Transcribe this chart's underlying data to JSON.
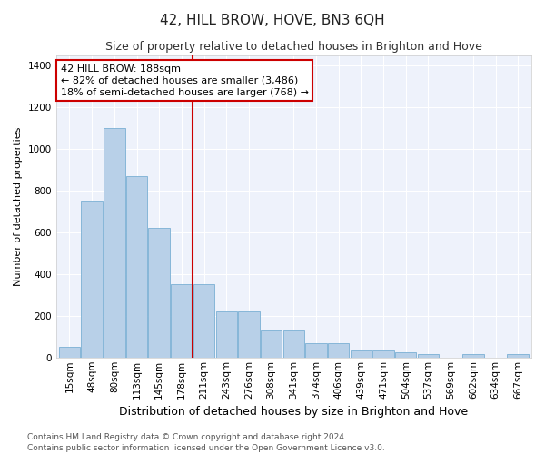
{
  "title": "42, HILL BROW, HOVE, BN3 6QH",
  "subtitle": "Size of property relative to detached houses in Brighton and Hove",
  "xlabel": "Distribution of detached houses by size in Brighton and Hove",
  "ylabel": "Number of detached properties",
  "categories": [
    "15sqm",
    "48sqm",
    "80sqm",
    "113sqm",
    "145sqm",
    "178sqm",
    "211sqm",
    "243sqm",
    "276sqm",
    "308sqm",
    "341sqm",
    "374sqm",
    "406sqm",
    "439sqm",
    "471sqm",
    "504sqm",
    "537sqm",
    "569sqm",
    "602sqm",
    "634sqm",
    "667sqm"
  ],
  "values": [
    50,
    750,
    1100,
    870,
    620,
    350,
    350,
    220,
    220,
    135,
    135,
    70,
    70,
    35,
    35,
    25,
    15,
    0,
    15,
    0,
    15
  ],
  "bar_color": "#b8d0e8",
  "bar_edge_color": "#7aafd4",
  "red_line_color": "#cc0000",
  "red_line_index": 6,
  "annotation_text": "42 HILL BROW: 188sqm\n← 82% of detached houses are smaller (3,486)\n18% of semi-detached houses are larger (768) →",
  "annotation_box_facecolor": "#ffffff",
  "annotation_border_color": "#cc0000",
  "ylim": [
    0,
    1450
  ],
  "yticks": [
    0,
    200,
    400,
    600,
    800,
    1000,
    1200,
    1400
  ],
  "background_color": "#eef2fb",
  "footer_line1": "Contains HM Land Registry data © Crown copyright and database right 2024.",
  "footer_line2": "Contains public sector information licensed under the Open Government Licence v3.0.",
  "title_fontsize": 11,
  "subtitle_fontsize": 9,
  "xlabel_fontsize": 9,
  "ylabel_fontsize": 8,
  "tick_fontsize": 7.5,
  "annotation_fontsize": 8,
  "footer_fontsize": 6.5
}
